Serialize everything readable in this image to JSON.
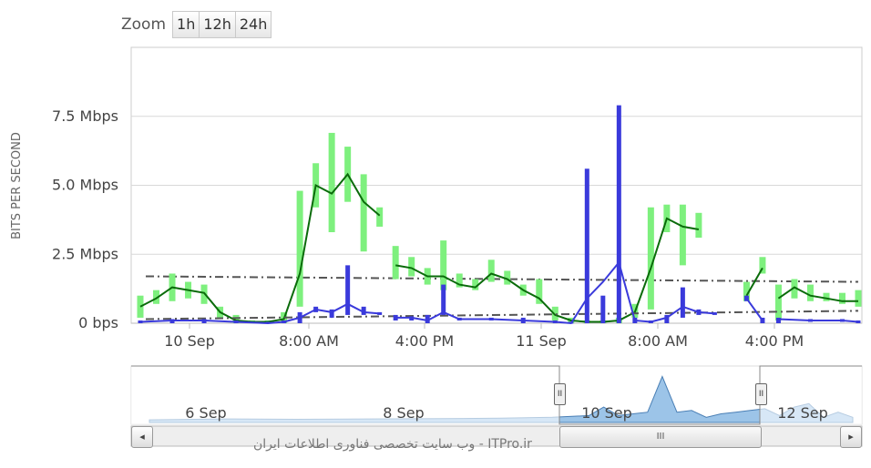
{
  "zoom": {
    "label": "Zoom",
    "buttons": [
      "1h",
      "12h",
      "24h"
    ]
  },
  "y_axis_title": "BITS PER SECOND",
  "watermark": "وب سایت تخصصی فناوری اطلاعات ایران - ITPro.ir",
  "navigator": {
    "labels": [
      "6 Sep",
      "8 Sep",
      "10 Sep",
      "12 Sep"
    ],
    "thumb_grip": "III",
    "handle_grip": "II",
    "left_arrow": "◂",
    "right_arrow": "▸"
  },
  "chart_data": {
    "type": "line",
    "title": "",
    "xlabel": "",
    "ylabel": "BITS PER SECOND",
    "x_range_hours": [
      0,
      40
    ],
    "ylim": [
      0,
      10
    ],
    "y_unit": "Mbps",
    "y_ticks": [
      {
        "value": 0,
        "label": "0 bps"
      },
      {
        "value": 2.5,
        "label": "2.5 Mbps"
      },
      {
        "value": 5,
        "label": "5.0 Mbps"
      },
      {
        "value": 7.5,
        "label": "7.5 Mbps"
      }
    ],
    "x_ticks": [
      {
        "hour": 2.4,
        "label": "10 Sep"
      },
      {
        "hour": 8.0,
        "label": "8:00 AM"
      },
      {
        "hour": 16.0,
        "label": "4:00 PM"
      },
      {
        "hour": 24.0,
        "label": "11 Sep"
      },
      {
        "hour": 32.0,
        "label": "8:00 AM"
      },
      {
        "hour": 40.0,
        "label": "4:00 PM"
      }
    ],
    "grid": true,
    "series": [
      {
        "color": "#0a6b0a",
        "range_color": "#7ef07e",
        "points": [
          [
            0,
            0.6,
            0.2,
            1.0
          ],
          [
            1,
            0.9,
            0.7,
            1.2
          ],
          [
            2,
            1.3,
            0.8,
            1.8
          ],
          [
            3,
            1.2,
            0.9,
            1.5
          ],
          [
            4,
            1.1,
            0.7,
            1.4
          ],
          [
            5,
            0.4,
            0.2,
            0.6
          ],
          [
            6,
            0.1,
            0.0,
            0.3
          ],
          [
            7,
            0.05,
            0.0,
            0.1
          ],
          [
            8,
            0.05,
            0.0,
            0.1
          ],
          [
            9,
            0.15,
            0.0,
            0.4
          ],
          [
            10,
            1.8,
            0.6,
            4.8
          ],
          [
            11,
            5.0,
            4.2,
            5.8
          ],
          [
            12,
            4.7,
            3.3,
            6.9
          ],
          [
            13,
            5.4,
            4.4,
            6.4
          ],
          [
            14,
            4.4,
            2.6,
            5.4
          ],
          [
            15,
            3.9,
            3.5,
            4.2
          ],
          [
            null,
            null,
            null,
            null
          ],
          [
            16,
            2.1,
            1.6,
            2.8
          ],
          [
            17,
            2.0,
            1.7,
            2.4
          ],
          [
            18,
            1.7,
            1.4,
            2.0
          ],
          [
            19,
            1.7,
            1.2,
            3.0
          ],
          [
            20,
            1.4,
            1.3,
            1.8
          ],
          [
            21,
            1.3,
            1.2,
            1.6
          ],
          [
            22,
            1.8,
            1.5,
            2.3
          ],
          [
            23,
            1.6,
            1.4,
            1.9
          ],
          [
            24,
            1.2,
            1.0,
            1.4
          ],
          [
            25,
            0.9,
            0.7,
            1.6
          ],
          [
            26,
            0.3,
            0.1,
            0.6
          ],
          [
            27,
            0.1,
            0.0,
            0.2
          ],
          [
            28,
            0.05,
            0.0,
            0.1
          ],
          [
            29,
            0.05,
            0.0,
            0.1
          ],
          [
            30,
            0.1,
            0.0,
            0.2
          ],
          [
            31,
            0.4,
            0.2,
            0.7
          ],
          [
            32,
            2.0,
            0.5,
            4.2
          ],
          [
            33,
            3.8,
            3.3,
            4.3
          ],
          [
            34,
            3.5,
            2.1,
            4.3
          ],
          [
            35,
            3.4,
            3.1,
            4.0
          ],
          [
            null,
            null,
            null,
            null
          ],
          [
            38,
            1.0,
            0.8,
            1.5
          ],
          [
            39,
            2.0,
            1.8,
            2.4
          ],
          [
            null,
            null,
            null,
            null
          ],
          [
            40,
            0.9,
            0.1,
            1.4
          ],
          [
            41,
            1.3,
            0.9,
            1.6
          ],
          [
            42,
            1.0,
            0.8,
            1.4
          ],
          [
            43,
            0.9,
            0.8,
            1.1
          ],
          [
            44,
            0.8,
            0.7,
            1.1
          ],
          [
            45,
            0.8,
            0.6,
            1.2
          ]
        ],
        "trend": [
          [
            0,
            1.7
          ],
          [
            45,
            1.5
          ]
        ]
      },
      {
        "color": "#3a3adb",
        "range_color": "#3a3adb",
        "points": [
          [
            0,
            0.05,
            0.0,
            0.1
          ],
          [
            2,
            0.1,
            0.0,
            0.15
          ],
          [
            4,
            0.1,
            0.0,
            0.15
          ],
          [
            6,
            0.05,
            0.0,
            0.1
          ],
          [
            8,
            0.0,
            0.0,
            0.05
          ],
          [
            9,
            0.05,
            0.0,
            0.1
          ],
          [
            10,
            0.2,
            0.0,
            0.4
          ],
          [
            11,
            0.5,
            0.4,
            0.6
          ],
          [
            12,
            0.4,
            0.2,
            0.5
          ],
          [
            13,
            0.7,
            0.3,
            2.1
          ],
          [
            14,
            0.4,
            0.3,
            0.6
          ],
          [
            15,
            0.35,
            0.3,
            0.4
          ],
          [
            null,
            null,
            null,
            null
          ],
          [
            16,
            0.2,
            0.1,
            0.3
          ],
          [
            17,
            0.2,
            0.1,
            0.25
          ],
          [
            18,
            0.1,
            0.0,
            0.3
          ],
          [
            19,
            0.4,
            0.3,
            1.4
          ],
          [
            20,
            0.15,
            0.1,
            0.2
          ],
          [
            22,
            0.15,
            0.1,
            0.2
          ],
          [
            24,
            0.1,
            0.0,
            0.2
          ],
          [
            26,
            0.05,
            0.0,
            0.1
          ],
          [
            27,
            0.0,
            0.0,
            0.05
          ],
          [
            28,
            0.9,
            0.0,
            5.6
          ],
          [
            29,
            1.5,
            0.0,
            1.0
          ],
          [
            30,
            2.2,
            0.0,
            7.9
          ],
          [
            31,
            0.1,
            0.0,
            0.2
          ],
          [
            32,
            0.05,
            0.0,
            0.1
          ],
          [
            33,
            0.2,
            0.0,
            0.3
          ],
          [
            34,
            0.6,
            0.2,
            1.3
          ],
          [
            35,
            0.4,
            0.3,
            0.5
          ],
          [
            36,
            0.35,
            0.3,
            0.4
          ],
          [
            null,
            null,
            null,
            null
          ],
          [
            38,
            0.9,
            0.8,
            1.0
          ],
          [
            39,
            0.1,
            0.0,
            0.2
          ],
          [
            null,
            null,
            null,
            null
          ],
          [
            40,
            0.15,
            0.0,
            0.2
          ],
          [
            42,
            0.1,
            0.05,
            0.15
          ],
          [
            44,
            0.1,
            0.05,
            0.15
          ],
          [
            45,
            0.05,
            0.0,
            0.1
          ]
        ],
        "trend": [
          [
            0,
            0.15
          ],
          [
            45,
            0.45
          ]
        ]
      }
    ],
    "navigator_series": [
      [
        0,
        0.05
      ],
      [
        10,
        0.1
      ],
      [
        20,
        0.08
      ],
      [
        30,
        0.1
      ],
      [
        40,
        0.12
      ],
      [
        48,
        0.15
      ],
      [
        55,
        0.2
      ],
      [
        60,
        0.3
      ],
      [
        62,
        0.8
      ],
      [
        64,
        0.3
      ],
      [
        66,
        0.4
      ],
      [
        68,
        0.5
      ],
      [
        70,
        2.6
      ],
      [
        72,
        0.5
      ],
      [
        74,
        0.6
      ],
      [
        76,
        0.2
      ],
      [
        78,
        0.4
      ],
      [
        80,
        0.5
      ],
      [
        82,
        0.6
      ],
      [
        84,
        0.7
      ],
      [
        86,
        0.3
      ],
      [
        88,
        0.8
      ],
      [
        90,
        1.0
      ],
      [
        92,
        0.2
      ],
      [
        94,
        0.5
      ],
      [
        96,
        0.2
      ]
    ]
  }
}
